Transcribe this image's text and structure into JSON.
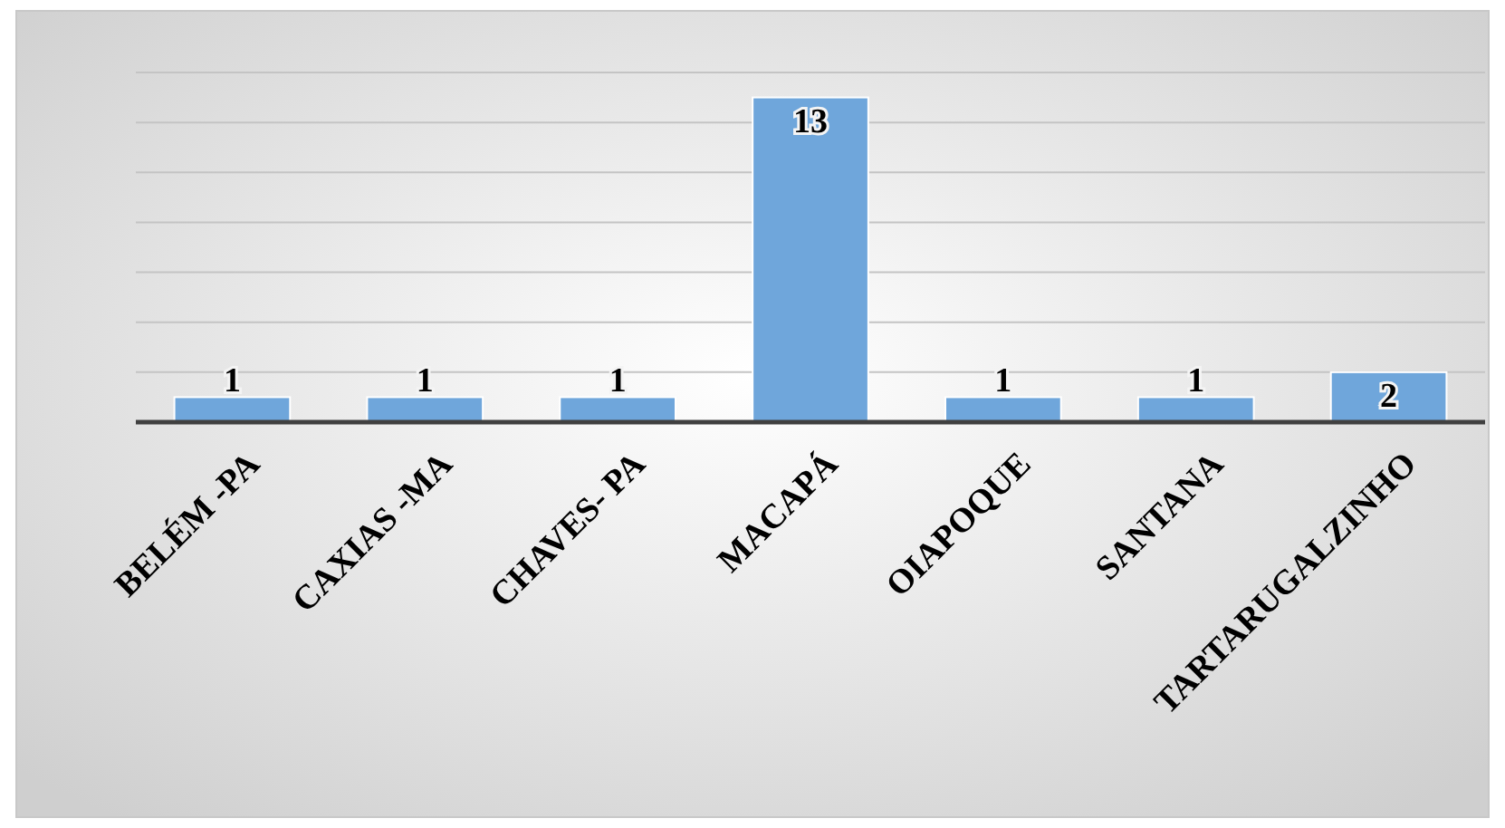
{
  "chart_data": {
    "type": "bar",
    "categories": [
      "BELÉM -PA",
      "CAXIAS -MA",
      "CHAVES- PA",
      "MACAPÁ",
      "OIAPOQUE",
      "SANTANA",
      "TARTARUGALZINHO"
    ],
    "values": [
      1,
      1,
      1,
      13,
      1,
      1,
      2
    ],
    "color": "#6fa6db",
    "ylim": [
      0,
      14
    ],
    "yticks": [
      {
        "value": 0,
        "label": null
      },
      {
        "value": 2,
        "label": null
      },
      {
        "value": 4,
        "label": null
      },
      {
        "value": 6,
        "label": null
      },
      {
        "value": 8,
        "label": null
      },
      {
        "value": 10,
        "label": null
      },
      {
        "value": 12,
        "label": null
      },
      {
        "value": 14,
        "label": null
      }
    ],
    "grid": "y",
    "tick_labels": "x",
    "data_labels": true
  }
}
